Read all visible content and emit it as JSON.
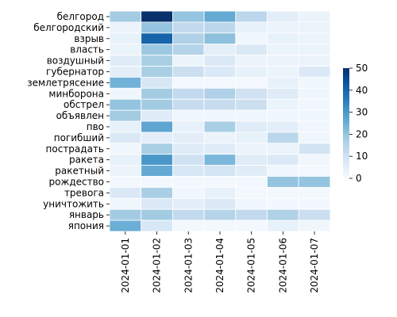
{
  "chart_data": {
    "type": "heatmap",
    "title": "",
    "xlabel": "",
    "ylabel": "",
    "x": [
      "2024-01-01",
      "2024-01-02",
      "2024-01-03",
      "2024-01-04",
      "2024-01-05",
      "2024-01-06",
      "2024-01-07"
    ],
    "y": [
      "белгород",
      "белгородский",
      "взрыв",
      "власть",
      "воздушный",
      "губернатор",
      "землетрясение",
      "минборона",
      "обстрел",
      "объявлен",
      "пво",
      "погибший",
      "пострадать",
      "ракета",
      "ракетный",
      "рождество",
      "тревога",
      "уничтожить",
      "январь",
      "япония"
    ],
    "values": [
      [
        18,
        50,
        20,
        26,
        14,
        5,
        3
      ],
      [
        3,
        20,
        13,
        14,
        4,
        3,
        3
      ],
      [
        4,
        40,
        16,
        21,
        2,
        4,
        3
      ],
      [
        3,
        19,
        15,
        5,
        7,
        3,
        3
      ],
      [
        6,
        17,
        3,
        7,
        3,
        3,
        3
      ],
      [
        5,
        17,
        11,
        7,
        4,
        3,
        7
      ],
      [
        24,
        8,
        1,
        1,
        1,
        4,
        2
      ],
      [
        2,
        18,
        13,
        16,
        10,
        6,
        2
      ],
      [
        20,
        18,
        12,
        12,
        11,
        3,
        2
      ],
      [
        18,
        6,
        2,
        2,
        2,
        2,
        2
      ],
      [
        4,
        27,
        4,
        17,
        6,
        5,
        2
      ],
      [
        7,
        5,
        5,
        3,
        4,
        14,
        2
      ],
      [
        2,
        17,
        6,
        6,
        3,
        3,
        9
      ],
      [
        4,
        30,
        10,
        23,
        6,
        7,
        2
      ],
      [
        3,
        26,
        8,
        9,
        6,
        2,
        1
      ],
      [
        1,
        1,
        1,
        1,
        1,
        20,
        20
      ],
      [
        7,
        17,
        2,
        4,
        1,
        1,
        1
      ],
      [
        2,
        7,
        5,
        7,
        2,
        1,
        1
      ],
      [
        18,
        18,
        13,
        15,
        13,
        16,
        11
      ],
      [
        25,
        8,
        1,
        1,
        1,
        4,
        2
      ]
    ],
    "colorbar": {
      "range": [
        0,
        50
      ],
      "ticks": [
        0,
        10,
        20,
        30,
        40,
        50
      ]
    },
    "colormap": "Blues",
    "grid": false,
    "legend": "colorbar-right"
  }
}
